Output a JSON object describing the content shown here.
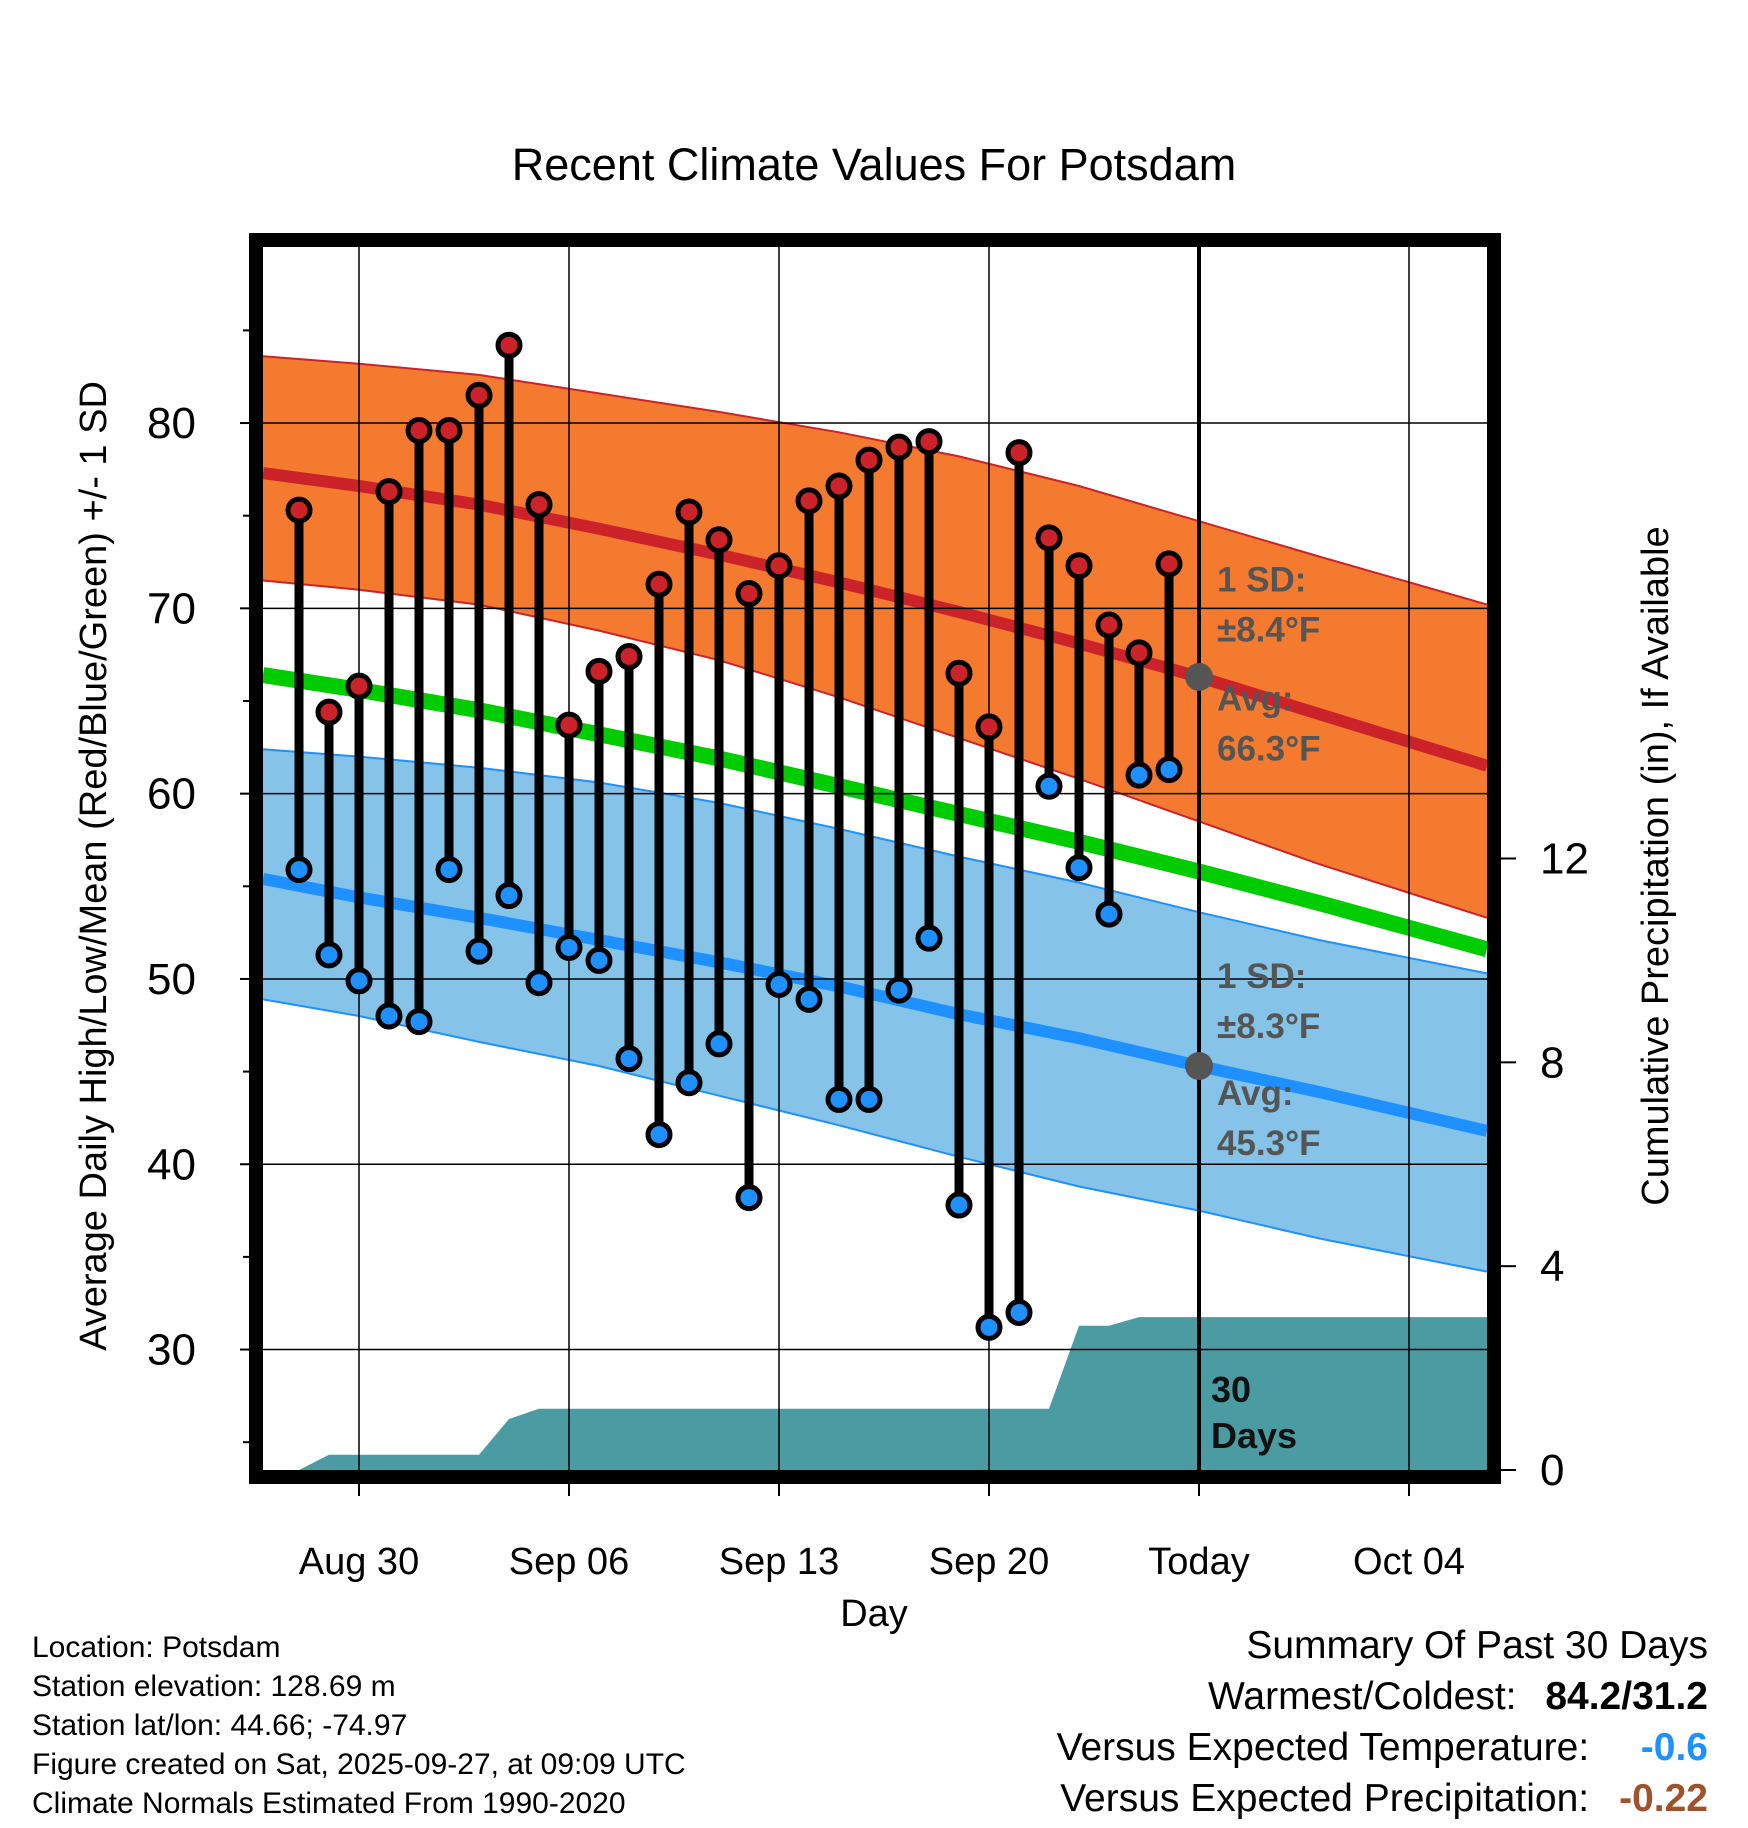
{
  "chart_data": {
    "type": "line",
    "title": "Recent Climate Values For Potsdam",
    "xlabel": "Day",
    "ylabel": "Average Daily High/Low/Mean (Red/Blue/Green) +/- 1 SD",
    "y2label": "Cumulative Precipitation (in), If Available",
    "ylim": [
      23.5,
      89.5
    ],
    "y2lim": [
      0,
      24
    ],
    "y_ticks": [
      30,
      40,
      50,
      60,
      70,
      80
    ],
    "y2_ticks": [
      0,
      4,
      8,
      12
    ],
    "x_range_days": [
      -31.2,
      9.6
    ],
    "x_ticks": [
      {
        "day": -28,
        "label": "Aug 30"
      },
      {
        "day": -21,
        "label": "Sep 06"
      },
      {
        "day": -14,
        "label": "Sep 13"
      },
      {
        "day": -7,
        "label": "Sep 20"
      },
      {
        "day": 0,
        "label": "Today"
      },
      {
        "day": 7,
        "label": "Oct 04"
      }
    ],
    "today_label": "30\nDays",
    "normals": {
      "x": [
        -31.2,
        -28,
        -24,
        -20,
        -16,
        -12,
        -8,
        -4,
        0,
        4,
        9.6
      ],
      "high_avg": [
        77.3,
        76.6,
        75.6,
        74.3,
        72.9,
        71.4,
        69.8,
        68.1,
        66.3,
        64.3,
        61.5
      ],
      "high_upper": [
        83.6,
        83.2,
        82.6,
        81.6,
        80.6,
        79.5,
        78.2,
        76.6,
        74.7,
        72.8,
        70.2
      ],
      "high_lower": [
        71.5,
        71.0,
        70.2,
        68.8,
        67.2,
        65.2,
        63.0,
        60.8,
        58.5,
        56.2,
        53.3
      ],
      "mean_avg": [
        66.4,
        65.6,
        64.5,
        63.2,
        61.9,
        60.4,
        58.9,
        57.4,
        55.8,
        54.1,
        51.6
      ],
      "low_avg": [
        55.4,
        54.4,
        53.3,
        52.1,
        50.9,
        49.6,
        48.1,
        46.8,
        45.3,
        43.9,
        41.8
      ],
      "low_upper": [
        62.4,
        62.0,
        61.4,
        60.6,
        59.5,
        58.1,
        56.6,
        55.2,
        53.6,
        52.1,
        50.3
      ],
      "low_lower": [
        48.9,
        48.0,
        46.6,
        45.3,
        43.7,
        42.1,
        40.4,
        38.8,
        37.5,
        36.0,
        34.2
      ]
    },
    "daily": {
      "day": [
        -30,
        -29,
        -28,
        -27,
        -26,
        -25,
        -24,
        -23,
        -22,
        -21,
        -20,
        -19,
        -18,
        -17,
        -16,
        -15,
        -14,
        -13,
        -12,
        -11,
        -10,
        -9,
        -8,
        -7,
        -6,
        -5,
        -4,
        -3,
        -2,
        -1
      ],
      "high": [
        75.3,
        64.4,
        65.8,
        76.3,
        79.6,
        79.6,
        81.5,
        84.2,
        75.6,
        63.7,
        66.6,
        67.4,
        71.3,
        75.2,
        73.7,
        70.8,
        72.3,
        75.8,
        76.6,
        78.0,
        78.7,
        79.0,
        66.5,
        63.6,
        78.4,
        73.8,
        72.3,
        69.1,
        67.6,
        72.4
      ],
      "low": [
        55.9,
        51.3,
        49.9,
        48.0,
        47.7,
        55.9,
        51.5,
        54.5,
        49.8,
        51.7,
        51.0,
        45.7,
        41.6,
        44.4,
        46.5,
        38.2,
        49.7,
        48.9,
        43.5,
        43.5,
        49.4,
        52.2,
        37.8,
        31.2,
        32.0,
        60.4,
        56.0,
        53.5,
        61.0,
        61.3
      ]
    },
    "precip": {
      "x": [
        -30,
        -29,
        -28,
        -24,
        -23,
        -22,
        -21,
        -20,
        -19,
        -7.05,
        -6.0,
        -5.0,
        -4.0,
        -3.0,
        -2.0,
        -1.0,
        9.6
      ],
      "cumulative": [
        0.0,
        0.3,
        0.3,
        0.3,
        1.0,
        1.2,
        1.2,
        1.2,
        1.2,
        1.2,
        1.2,
        1.2,
        2.83,
        2.83,
        3.0,
        3.0,
        3.0
      ]
    },
    "annotations": {
      "high_sd_label": "1 SD:",
      "high_sd_value": "±8.4°F",
      "high_avg_label": "Avg:",
      "high_avg_value": "66.3°F",
      "low_sd_label": "1 SD:",
      "low_sd_value": "±8.3°F",
      "low_avg_label": "Avg:",
      "low_avg_value": "45.3°F"
    },
    "colors": {
      "high_band": "#f47a30",
      "high_line": "#cc2229",
      "mean_line": "#00cc00",
      "low_band": "#85c3e8",
      "low_line": "#1e90ff",
      "precip": "#4a9ba2",
      "annotation": "#555555",
      "high_dot": "#cc2229",
      "low_dot": "#1e90ff"
    }
  },
  "footer": {
    "location": "Location: Potsdam",
    "elevation": "Station elevation: 128.69 m",
    "latlon": "Station lat/lon: 44.66; -74.97",
    "created": "Figure created on Sat, 2025-09-27, at 09:09 UTC",
    "normals": "Climate Normals Estimated From 1990-2020"
  },
  "summary": {
    "heading": "Summary Of Past 30 Days",
    "warm_cold_label": "Warmest/Coldest:",
    "warm_cold_value": "84.2/31.2",
    "temp_label": "Versus Expected Temperature:",
    "temp_value": "-0.6",
    "temp_color": "#1e90ff",
    "precip_label": "Versus Expected Precipitation:",
    "precip_value": "-0.22",
    "precip_color": "#a0522d"
  }
}
